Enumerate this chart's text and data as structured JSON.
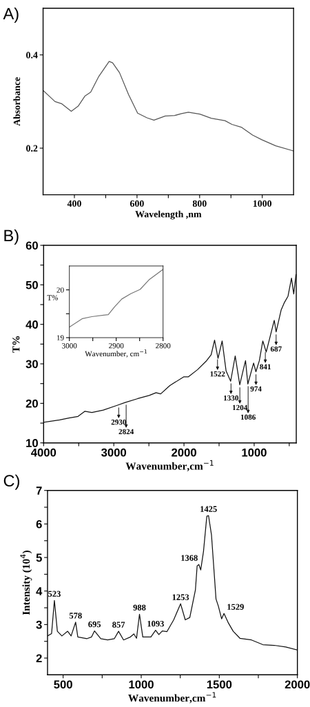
{
  "chart_data": [
    {
      "type": "line",
      "title": "A)",
      "xlabel": "Wavelength ,nm",
      "ylabel": "Absorbance",
      "xlim": [
        300,
        1100
      ],
      "ylim": [
        0.1,
        0.5
      ],
      "xticks": [
        400,
        {
          "value": 500,
          "label": null
        },
        600,
        {
          "value": 700,
          "label": null
        },
        800,
        {
          "value": 900,
          "label": null
        },
        1000
      ],
      "yticks": [
        0.2,
        0.4
      ],
      "series": [
        {
          "color": "#555555",
          "x": [
            300,
            338,
            360,
            390,
            412,
            434,
            452,
            478,
            511,
            522,
            544,
            573,
            602,
            632,
            654,
            690,
            720,
            742,
            764,
            801,
            837,
            881,
            903,
            933,
            969,
            999,
            1043,
            1100
          ],
          "values": [
            0.324,
            0.3,
            0.295,
            0.279,
            0.29,
            0.312,
            0.32,
            0.354,
            0.386,
            0.383,
            0.362,
            0.315,
            0.275,
            0.265,
            0.26,
            0.269,
            0.27,
            0.274,
            0.277,
            0.273,
            0.264,
            0.259,
            0.251,
            0.245,
            0.228,
            0.218,
            0.205,
            0.194
          ]
        }
      ]
    },
    {
      "type": "line",
      "title": "B)",
      "xlabel": "Wavenumber,cm$^{−1}$",
      "ylabel": "T%",
      "xlim": [
        4000,
        400
      ],
      "ylim": [
        10,
        60
      ],
      "xticks": [
        4000,
        {
          "value": 3500,
          "label": null
        },
        3000,
        {
          "value": 2500,
          "label": null
        },
        2000,
        {
          "value": 1500,
          "label": null
        },
        1000,
        {
          "value": 500,
          "label": null
        }
      ],
      "yticks": [
        10,
        {
          "value": 15,
          "label": null
        },
        20,
        {
          "value": 25,
          "label": null
        },
        30,
        {
          "value": 35,
          "label": null
        },
        40,
        {
          "value": 45,
          "label": null
        },
        50,
        {
          "value": 55,
          "label": null
        },
        60
      ],
      "series": [
        {
          "color": "#111111",
          "x": [
            4000,
            3771,
            3640,
            3510,
            3411,
            3313,
            3150,
            2953,
            2839,
            2659,
            2496,
            2398,
            2332,
            2201,
            2005,
            1940,
            1809,
            1678,
            1613,
            1564,
            1515,
            1456,
            1400,
            1335,
            1270,
            1205,
            1155,
            1123,
            1090,
            1008,
            975,
            926,
            877,
            828,
            714,
            687,
            616,
            567,
            518,
            468,
            436,
            404
          ],
          "values": [
            15.2,
            15.8,
            16.3,
            16.7,
            18.0,
            17.7,
            18.3,
            19.5,
            20.2,
            21.2,
            22.0,
            22.7,
            22.4,
            24.5,
            26.7,
            26.7,
            28.5,
            30.8,
            32.3,
            36.0,
            31.4,
            35.8,
            28.2,
            25.6,
            32.0,
            24.7,
            28.5,
            30.8,
            24.9,
            30.2,
            28.0,
            30.8,
            35.8,
            33.0,
            41.0,
            38.1,
            43.6,
            45.6,
            47.1,
            51.7,
            47.7,
            52.6
          ]
        }
      ],
      "annotations": [
        {
          "text": "2930",
          "x": 2930,
          "y": 19.6
        },
        {
          "text": "2824",
          "x": 2824,
          "y": 20.3
        },
        {
          "text": "1522",
          "x": 1522,
          "y": 31.8
        },
        {
          "text": "1330",
          "x": 1330,
          "y": 25.7
        },
        {
          "text": "1204",
          "x": 1204,
          "y": 24.7
        },
        {
          "text": "1086",
          "x": 1086,
          "y": 25.0
        },
        {
          "text": "974",
          "x": 974,
          "y": 28.0
        },
        {
          "text": "841",
          "x": 841,
          "y": 33.6
        },
        {
          "text": "687",
          "x": 687,
          "y": 38.1
        }
      ]
    },
    {
      "type": "line",
      "xlabel": "Wavenumber, cm$^{−1}$",
      "ylabel": "T%",
      "xlim": [
        3000,
        2800
      ],
      "ylim": [
        19,
        20.5
      ],
      "xticks": [
        3000,
        {
          "value": 2950,
          "label": null
        },
        2900,
        {
          "value": 2850,
          "label": null
        },
        2800
      ],
      "yticks": [
        19,
        {
          "value": 19.5,
          "label": null
        },
        20
      ],
      "series": [
        {
          "color": "#777777",
          "x": [
            3000,
            2972,
            2952,
            2927,
            2917,
            2903,
            2888,
            2869,
            2849,
            2830,
            2800
          ],
          "values": [
            19.22,
            19.4,
            19.44,
            19.47,
            19.48,
            19.65,
            19.81,
            19.92,
            20.01,
            20.21,
            20.43
          ]
        }
      ]
    },
    {
      "type": "line",
      "title": "C)",
      "xlabel": "Wavenumber,cm$^{−1}$",
      "ylabel": "Intensity (10$^{4}$)",
      "xlim": [
        400,
        2000
      ],
      "ylim": [
        1.5,
        7
      ],
      "xticks": [
        500,
        {
          "value": 750,
          "label": null
        },
        1000,
        {
          "value": 1250,
          "label": null
        },
        1500,
        {
          "value": 1750,
          "label": null
        },
        2000
      ],
      "yticks": [
        2,
        {
          "value": 2.5,
          "label": null
        },
        3,
        {
          "value": 3.5,
          "label": null
        },
        4,
        {
          "value": 4.5,
          "label": null
        },
        5,
        {
          "value": 5.5,
          "label": null
        },
        6,
        {
          "value": 6.5,
          "label": null
        },
        7
      ],
      "series": [
        {
          "color": "#111111",
          "x": [
            400,
            426,
            444,
            463,
            492,
            529,
            551,
            580,
            594,
            653,
            682,
            701,
            741,
            785,
            828,
            855,
            887,
            931,
            953,
            970,
            989,
            1010,
            1062,
            1092,
            1113,
            1135,
            1165,
            1208,
            1252,
            1282,
            1311,
            1347,
            1358,
            1369,
            1381,
            1399,
            1420,
            1431,
            1450,
            1479,
            1494,
            1515,
            1530,
            1559,
            1589,
            1632,
            1706,
            1779,
            1852,
            1925,
            2000
          ],
          "values": [
            2.66,
            2.73,
            3.72,
            2.8,
            2.66,
            2.8,
            2.66,
            3.07,
            2.63,
            2.58,
            2.63,
            2.81,
            2.58,
            2.54,
            2.58,
            2.8,
            2.54,
            2.63,
            2.72,
            2.59,
            3.31,
            2.63,
            2.63,
            2.83,
            2.7,
            2.81,
            2.79,
            3.14,
            3.62,
            3.14,
            3.21,
            4.03,
            4.75,
            4.79,
            4.63,
            5.19,
            6.23,
            6.25,
            5.67,
            3.76,
            3.55,
            3.17,
            3.33,
            3.04,
            2.8,
            2.59,
            2.54,
            2.4,
            2.38,
            2.33,
            2.24
          ]
        }
      ],
      "annotations": [
        {
          "text": "523",
          "x": 444,
          "y": 3.72
        },
        {
          "text": "578",
          "x": 580,
          "y": 3.07
        },
        {
          "text": "695",
          "x": 701,
          "y": 2.81
        },
        {
          "text": "857",
          "x": 855,
          "y": 2.8
        },
        {
          "text": "988",
          "x": 989,
          "y": 3.31
        },
        {
          "text": "1093",
          "x": 1092,
          "y": 2.83
        },
        {
          "text": "1253",
          "x": 1252,
          "y": 3.62
        },
        {
          "text": "1368",
          "x": 1369,
          "y": 4.79
        },
        {
          "text": "1425",
          "x": 1431,
          "y": 6.25
        },
        {
          "text": "1529",
          "x": 1530,
          "y": 3.33
        }
      ]
    }
  ]
}
